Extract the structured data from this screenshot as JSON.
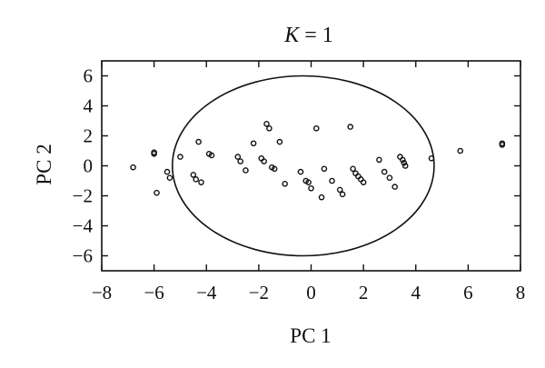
{
  "chart_data": {
    "type": "scatter",
    "title_var": "K",
    "title_rest": " = 1",
    "xlabel": "PC 1",
    "ylabel": "PC 2",
    "xlim": [
      -8,
      8
    ],
    "ylim": [
      -7,
      7
    ],
    "xticks": [
      -8,
      -6,
      -4,
      -2,
      0,
      2,
      4,
      6,
      8
    ],
    "yticks": [
      -6,
      -4,
      -2,
      0,
      2,
      4,
      6
    ],
    "grid": false,
    "ellipse": {
      "center": [
        -0.3,
        0
      ],
      "radius_x": 5.0,
      "radius_y": 6.0
    },
    "points": [
      {
        "x": -6.8,
        "y": -0.1
      },
      {
        "x": -6.0,
        "y": 0.9
      },
      {
        "x": -6.0,
        "y": 0.8
      },
      {
        "x": -5.9,
        "y": -1.8
      },
      {
        "x": -5.5,
        "y": -0.4
      },
      {
        "x": -5.4,
        "y": -0.8
      },
      {
        "x": -5.0,
        "y": 0.6
      },
      {
        "x": -4.5,
        "y": -0.6
      },
      {
        "x": -4.4,
        "y": -0.9
      },
      {
        "x": -4.3,
        "y": 1.6
      },
      {
        "x": -4.2,
        "y": -1.1
      },
      {
        "x": -3.9,
        "y": 0.8
      },
      {
        "x": -3.8,
        "y": 0.7
      },
      {
        "x": -2.8,
        "y": 0.6
      },
      {
        "x": -2.7,
        "y": 0.3
      },
      {
        "x": -2.5,
        "y": -0.3
      },
      {
        "x": -2.2,
        "y": 1.5
      },
      {
        "x": -1.9,
        "y": 0.5
      },
      {
        "x": -1.8,
        "y": 0.3
      },
      {
        "x": -1.7,
        "y": 2.8
      },
      {
        "x": -1.6,
        "y": 2.5
      },
      {
        "x": -1.5,
        "y": -0.1
      },
      {
        "x": -1.4,
        "y": -0.2
      },
      {
        "x": -1.2,
        "y": 1.6
      },
      {
        "x": -1.0,
        "y": -1.2
      },
      {
        "x": -0.4,
        "y": -0.4
      },
      {
        "x": -0.2,
        "y": -1.0
      },
      {
        "x": -0.1,
        "y": -1.1
      },
      {
        "x": 0.0,
        "y": -1.5
      },
      {
        "x": 0.2,
        "y": 2.5
      },
      {
        "x": 0.4,
        "y": -2.1
      },
      {
        "x": 0.5,
        "y": -0.2
      },
      {
        "x": 0.8,
        "y": -1.0
      },
      {
        "x": 1.1,
        "y": -1.6
      },
      {
        "x": 1.2,
        "y": -1.9
      },
      {
        "x": 1.5,
        "y": 2.6
      },
      {
        "x": 1.6,
        "y": -0.2
      },
      {
        "x": 1.7,
        "y": -0.5
      },
      {
        "x": 1.8,
        "y": -0.7
      },
      {
        "x": 1.9,
        "y": -0.9
      },
      {
        "x": 2.0,
        "y": -1.1
      },
      {
        "x": 2.6,
        "y": 0.4
      },
      {
        "x": 2.8,
        "y": -0.4
      },
      {
        "x": 3.0,
        "y": -0.8
      },
      {
        "x": 3.2,
        "y": -1.4
      },
      {
        "x": 3.4,
        "y": 0.6
      },
      {
        "x": 3.5,
        "y": 0.4
      },
      {
        "x": 3.55,
        "y": 0.2
      },
      {
        "x": 3.6,
        "y": 0.0
      },
      {
        "x": 4.6,
        "y": 0.5
      },
      {
        "x": 5.7,
        "y": 1.0
      },
      {
        "x": 7.3,
        "y": 1.5
      },
      {
        "x": 7.3,
        "y": 1.4
      }
    ]
  }
}
